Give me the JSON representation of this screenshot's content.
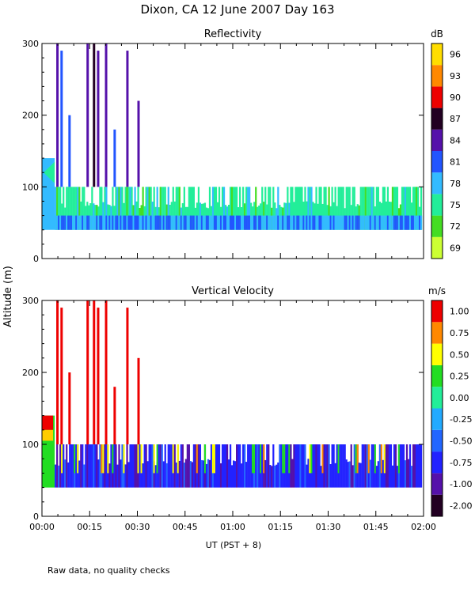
{
  "title": "Dixon, CA 12 June 2007  Day 163",
  "ylabel": "Altitude (m)",
  "xlabel": "UT  (PST + 8)",
  "note": "Raw data, no quality checks",
  "chart_data": [
    {
      "type": "heatmap",
      "title": "Reflectivity",
      "x_range_minutes": [
        0,
        120
      ],
      "ylim": [
        0,
        300
      ],
      "yticks": [
        0,
        100,
        200,
        300
      ],
      "xtick_labels": [
        "00:00",
        "00:15",
        "00:30",
        "00:45",
        "01:00",
        "01:15",
        "01:30",
        "01:45",
        "02:00"
      ],
      "colorbar": {
        "units": "dB",
        "tick_labels": [
          "69",
          "72",
          "75",
          "78",
          "81",
          "84",
          "87",
          "90",
          "93",
          "96"
        ],
        "colors": [
          "#ccff33",
          "#44dd22",
          "#22ee99",
          "#33bbff",
          "#2255ff",
          "#5511aa",
          "#220022",
          "#ee0000",
          "#ff8800",
          "#ffdd00"
        ]
      },
      "fields": {
        "base_layer": {
          "from_m": 40,
          "to_m": 100,
          "value_db": 75
        },
        "low_band": {
          "from_m": 40,
          "to_m": 60,
          "value_db": 79
        },
        "initial_block": {
          "time_min": [
            0,
            4
          ],
          "from_m": 40,
          "to_m": 140,
          "value_db": 78
        },
        "plumes": [
          {
            "time_min": 4.5,
            "top_m": 300,
            "value_db": 84
          },
          {
            "time_min": 5.8,
            "top_m": 290,
            "value_db": 82
          },
          {
            "time_min": 8.3,
            "top_m": 200,
            "value_db": 81
          },
          {
            "time_min": 14.0,
            "top_m": 300,
            "value_db": 84
          },
          {
            "time_min": 16.0,
            "top_m": 300,
            "value_db": 86
          },
          {
            "time_min": 17.3,
            "top_m": 290,
            "value_db": 85
          },
          {
            "time_min": 19.8,
            "top_m": 300,
            "value_db": 84
          },
          {
            "time_min": 22.5,
            "top_m": 180,
            "value_db": 82
          },
          {
            "time_min": 26.5,
            "top_m": 290,
            "value_db": 84
          },
          {
            "time_min": 30.0,
            "top_m": 220,
            "value_db": 84
          }
        ]
      }
    },
    {
      "type": "heatmap",
      "title": "Vertical Velocity",
      "x_range_minutes": [
        0,
        120
      ],
      "ylim": [
        0,
        300
      ],
      "yticks": [
        0,
        100,
        200,
        300
      ],
      "xtick_labels": [
        "00:00",
        "00:15",
        "00:30",
        "00:45",
        "01:00",
        "01:15",
        "01:30",
        "01:45",
        "02:00"
      ],
      "colorbar": {
        "units": "m/s",
        "tick_labels": [
          "-2.00",
          "-1.00",
          "-0.75",
          "-0.50",
          "-0.25",
          "0.00",
          "0.25",
          "0.50",
          "0.75",
          "1.00"
        ],
        "colors": [
          "#220022",
          "#5511aa",
          "#2222ff",
          "#2266ff",
          "#22aaff",
          "#22ee99",
          "#22dd22",
          "#ffff00",
          "#ff8800",
          "#ee0000"
        ]
      },
      "fields": {
        "base_layer": {
          "from_m": 40,
          "to_m": 100,
          "value_ms": -0.6
        },
        "initial_block": {
          "time_min": [
            0,
            4
          ],
          "from_m": 40,
          "to_m": 140,
          "value_ms": 0.25
        },
        "plumes": [
          {
            "time_min": 4.5,
            "top_m": 300,
            "value_ms": 1.1
          },
          {
            "time_min": 5.8,
            "top_m": 290,
            "value_ms": 1.1
          },
          {
            "time_min": 8.3,
            "top_m": 200,
            "value_ms": 1.0
          },
          {
            "time_min": 14.0,
            "top_m": 300,
            "value_ms": 1.1
          },
          {
            "time_min": 16.0,
            "top_m": 300,
            "value_ms": 1.1
          },
          {
            "time_min": 17.3,
            "top_m": 290,
            "value_ms": 1.1
          },
          {
            "time_min": 19.8,
            "top_m": 300,
            "value_ms": 1.0
          },
          {
            "time_min": 22.5,
            "top_m": 180,
            "value_ms": 1.0
          },
          {
            "time_min": 26.5,
            "top_m": 290,
            "value_ms": 1.1
          },
          {
            "time_min": 30.0,
            "top_m": 220,
            "value_ms": 1.0
          }
        ]
      }
    }
  ]
}
